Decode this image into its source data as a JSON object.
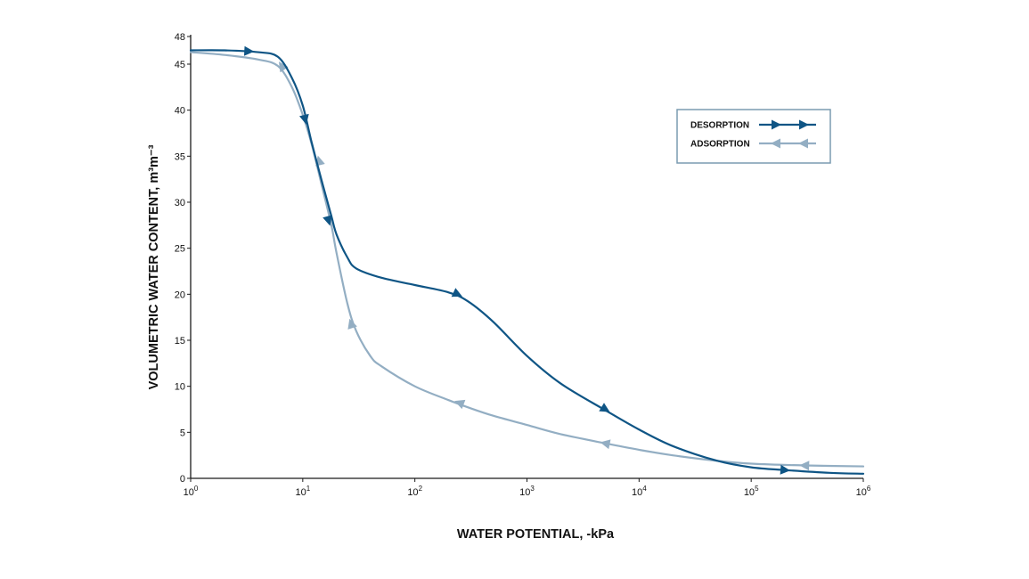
{
  "chart_data": {
    "type": "line",
    "title": "",
    "xlabel": "WATER POTENTIAL, -kPa",
    "ylabel": "VOLUMETRIC WATER CONTENT, m³m⁻³",
    "x_scale": "log",
    "xlim": [
      1,
      1000000
    ],
    "ylim": [
      0,
      48
    ],
    "x_ticks": [
      {
        "value": 1,
        "base": "10",
        "exp": "0"
      },
      {
        "value": 10,
        "base": "10",
        "exp": "1"
      },
      {
        "value": 100,
        "base": "10",
        "exp": "2"
      },
      {
        "value": 1000,
        "base": "10",
        "exp": "3"
      },
      {
        "value": 10000,
        "base": "10",
        "exp": "4"
      },
      {
        "value": 100000,
        "base": "10",
        "exp": "5"
      },
      {
        "value": 1000000,
        "base": "10",
        "exp": "6"
      }
    ],
    "y_ticks": [
      {
        "value": 0,
        "label": "0"
      },
      {
        "value": 5,
        "label": "5"
      },
      {
        "value": 10,
        "label": "10"
      },
      {
        "value": 15,
        "label": "15"
      },
      {
        "value": 20,
        "label": "20"
      },
      {
        "value": 25,
        "label": "25"
      },
      {
        "value": 30,
        "label": "30"
      },
      {
        "value": 35,
        "label": "35"
      },
      {
        "value": 40,
        "label": "40"
      },
      {
        "value": 45,
        "label": "45"
      },
      {
        "value": 48,
        "label": "48"
      }
    ],
    "grid": false,
    "legend_position": "top-right",
    "series": [
      {
        "name": "DESORPTION",
        "color": "#0f5585",
        "direction": "forward",
        "x": [
          1,
          2,
          4,
          6,
          8,
          10,
          12,
          15,
          18,
          20,
          25,
          30,
          50,
          100,
          200,
          300,
          500,
          1000,
          2000,
          5000,
          10000,
          20000,
          50000,
          100000,
          200000,
          500000,
          1000000
        ],
        "y": [
          46.5,
          46.5,
          46.3,
          45.8,
          43.5,
          40.5,
          36.5,
          32.0,
          28.5,
          26.5,
          24.0,
          22.8,
          21.8,
          21.0,
          20.2,
          19.2,
          17.0,
          13.3,
          10.3,
          7.4,
          5.3,
          3.5,
          1.9,
          1.2,
          0.9,
          0.6,
          0.5
        ],
        "markers": [
          {
            "x": 3.3,
            "y": 46.4
          },
          {
            "x": 10.5,
            "y": 39.0
          },
          {
            "x": 17,
            "y": 28.0
          },
          {
            "x": 240,
            "y": 20.0
          },
          {
            "x": 5000,
            "y": 7.5
          },
          {
            "x": 200000,
            "y": 0.9
          }
        ]
      },
      {
        "name": "ADSORPTION",
        "color": "#93aec3",
        "direction": "backward",
        "x": [
          1,
          2,
          4,
          6,
          8,
          10,
          12,
          15,
          18,
          20,
          25,
          30,
          40,
          50,
          100,
          200,
          300,
          500,
          1000,
          2000,
          5000,
          10000,
          20000,
          50000,
          100000,
          300000,
          1000000
        ],
        "y": [
          46.3,
          46.0,
          45.5,
          44.8,
          42.5,
          39.5,
          36.3,
          31.5,
          27.5,
          24.5,
          19.0,
          16.0,
          13.3,
          12.2,
          10.0,
          8.5,
          7.7,
          6.8,
          5.8,
          4.8,
          3.8,
          3.1,
          2.5,
          1.9,
          1.6,
          1.4,
          1.3
        ],
        "markers": [
          {
            "x": 6.5,
            "y": 44.8
          },
          {
            "x": 14,
            "y": 34.5
          },
          {
            "x": 27,
            "y": 16.8
          },
          {
            "x": 250,
            "y": 8.2
          },
          {
            "x": 5000,
            "y": 3.8
          },
          {
            "x": 300000,
            "y": 1.4
          }
        ]
      }
    ]
  }
}
